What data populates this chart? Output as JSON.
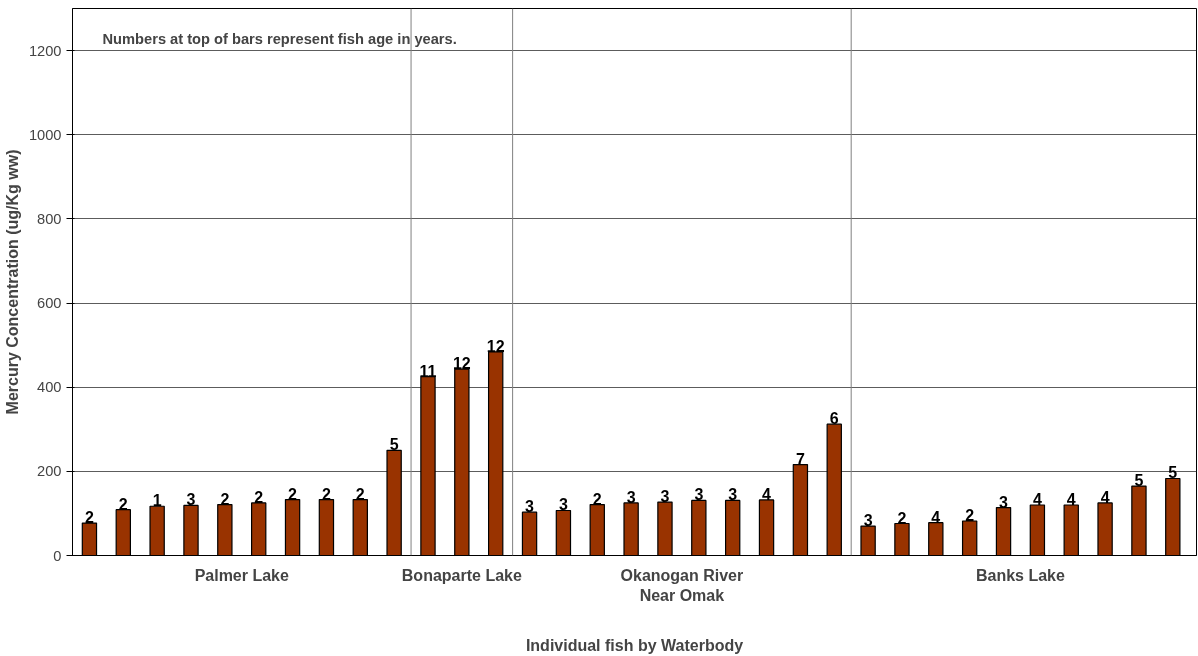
{
  "chart_data": {
    "type": "bar",
    "xlabel": "Individual fish by Waterbody",
    "ylabel": "Mercury Concentration (ug/Kg ww)",
    "annotations": [
      "Numbers at top of bars represent fish age in years.",
      "Palmer Lake",
      "Bonaparte Lake",
      "Okanogan River Near Omak",
      "Banks Lake",
      "2",
      "2",
      "1",
      "3",
      "2",
      "2",
      "2",
      "2",
      "2",
      "5",
      "11",
      "12",
      "12",
      "3",
      "3",
      "2",
      "3",
      "3",
      "3",
      "3",
      "4",
      "7",
      "6",
      "3",
      "2",
      "4",
      "2",
      "3",
      "4",
      "4",
      "4",
      "5",
      "5"
    ],
    "categories": [
      null,
      null,
      null,
      null,
      null,
      null,
      null,
      null,
      null,
      null,
      null,
      null,
      null,
      null,
      null,
      null,
      null,
      null,
      null,
      null,
      null,
      null,
      null,
      null,
      null,
      null,
      null,
      null,
      null,
      null,
      null,
      null,
      null
    ],
    "values": [
      77,
      109,
      117,
      119,
      121,
      125,
      133,
      133,
      133,
      250,
      425,
      443,
      484,
      103,
      107,
      121,
      125,
      127,
      131,
      131,
      132,
      216,
      312,
      70,
      76,
      78,
      82,
      114,
      120,
      120,
      125,
      165,
      183
    ],
    "color": "#993300",
    "ylim": [
      0,
      1300
    ],
    "yticks": [
      0,
      200,
      400,
      600,
      800,
      1000,
      1200
    ],
    "grid": "y"
  }
}
